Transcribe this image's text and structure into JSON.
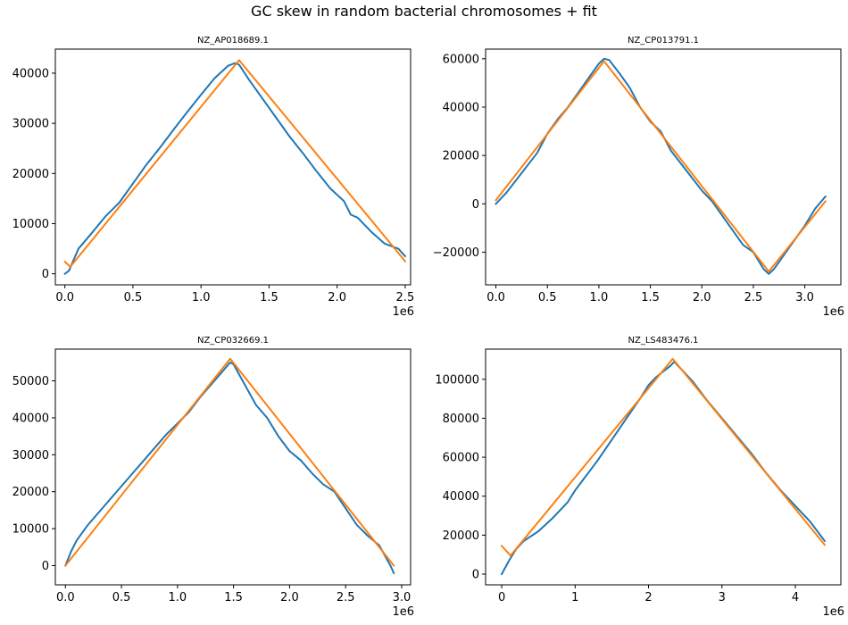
{
  "figure": {
    "suptitle": "GC skew in random bacterial chromosomes + fit"
  },
  "colors": {
    "data_line": "#1f77b4",
    "fit_line": "#ff7f0e",
    "axes": "#000000"
  },
  "chart_data": [
    {
      "type": "line",
      "title": "NZ_AP018689.1",
      "x_multiplier_label": "1e6",
      "xlim": [
        -0.07,
        2.54
      ],
      "ylim": [
        -2200,
        44800
      ],
      "x_ticks": [
        0,
        0.5,
        1.0,
        1.5,
        2.0,
        2.5
      ],
      "x_tick_labels": [
        "0.0",
        "0.5",
        "1.0",
        "1.5",
        "2.0",
        "2.5"
      ],
      "y_ticks": [
        0,
        10000,
        20000,
        30000,
        40000
      ],
      "y_tick_labels": [
        "0",
        "10000",
        "20000",
        "30000",
        "40000"
      ],
      "series": [
        {
          "x": [
            0,
            0.03,
            0.1,
            0.2,
            0.3,
            0.4,
            0.5,
            0.6,
            0.7,
            0.8,
            0.9,
            1.0,
            1.1,
            1.2,
            1.25,
            1.28,
            1.35,
            1.45,
            1.55,
            1.65,
            1.75,
            1.85,
            1.95,
            2.05,
            2.1,
            2.15,
            2.25,
            2.35,
            2.45,
            2.5
          ],
          "y": [
            0,
            600,
            5000,
            8200,
            11500,
            14200,
            18000,
            21800,
            25200,
            28800,
            32300,
            35700,
            39000,
            41500,
            42000,
            41700,
            38800,
            35000,
            31200,
            27400,
            24000,
            20400,
            17000,
            14500,
            11800,
            11200,
            8400,
            6000,
            5000,
            3500
          ]
        },
        {
          "x": [
            0,
            0.04,
            1.28,
            2.5
          ],
          "y": [
            2400,
            1400,
            42600,
            2500
          ]
        }
      ]
    },
    {
      "type": "line",
      "title": "NZ_CP013791.1",
      "x_multiplier_label": "1e6",
      "xlim": [
        -0.1,
        3.35
      ],
      "ylim": [
        -33500,
        64000
      ],
      "x_ticks": [
        0,
        0.5,
        1.0,
        1.5,
        2.0,
        2.5,
        3.0
      ],
      "x_tick_labels": [
        "0.0",
        "0.5",
        "1.0",
        "1.5",
        "2.0",
        "2.5",
        "3.0"
      ],
      "y_ticks": [
        -20000,
        0,
        20000,
        40000,
        60000
      ],
      "y_tick_labels": [
        "−20000",
        "0",
        "20000",
        "40000",
        "60000"
      ],
      "series": [
        {
          "x": [
            0,
            0.1,
            0.2,
            0.3,
            0.4,
            0.5,
            0.6,
            0.7,
            0.8,
            0.9,
            1.0,
            1.05,
            1.1,
            1.2,
            1.3,
            1.4,
            1.5,
            1.6,
            1.7,
            1.8,
            1.9,
            2.0,
            2.1,
            2.2,
            2.3,
            2.4,
            2.5,
            2.6,
            2.65,
            2.7,
            2.8,
            2.9,
            3.0,
            3.1,
            3.2
          ],
          "y": [
            0,
            4500,
            10000,
            15500,
            21000,
            29000,
            35000,
            40000,
            46000,
            52000,
            58000,
            60000,
            59500,
            54000,
            48000,
            40000,
            34000,
            30000,
            22000,
            16500,
            11000,
            5500,
            1000,
            -5000,
            -11000,
            -17000,
            -20000,
            -27000,
            -29000,
            -27000,
            -21000,
            -15000,
            -9000,
            -2000,
            3000
          ]
        },
        {
          "x": [
            0,
            1.05,
            2.65,
            3.2
          ],
          "y": [
            1500,
            59000,
            -28000,
            1000
          ]
        }
      ]
    },
    {
      "type": "line",
      "title": "NZ_CP032669.1",
      "x_multiplier_label": "1e6",
      "xlim": [
        -0.09,
        3.08
      ],
      "ylim": [
        -5200,
        58600
      ],
      "x_ticks": [
        0,
        0.5,
        1.0,
        1.5,
        2.0,
        2.5,
        3.0
      ],
      "x_tick_labels": [
        "0.0",
        "0.5",
        "1.0",
        "1.5",
        "2.0",
        "2.5",
        "3.0"
      ],
      "y_ticks": [
        0,
        10000,
        20000,
        30000,
        40000,
        50000
      ],
      "y_tick_labels": [
        "0",
        "10000",
        "20000",
        "30000",
        "40000",
        "50000"
      ],
      "series": [
        {
          "x": [
            0,
            0.05,
            0.1,
            0.2,
            0.3,
            0.4,
            0.5,
            0.6,
            0.7,
            0.8,
            0.9,
            1.0,
            1.1,
            1.2,
            1.3,
            1.4,
            1.47,
            1.5,
            1.6,
            1.7,
            1.8,
            1.9,
            2.0,
            2.1,
            2.2,
            2.3,
            2.4,
            2.5,
            2.6,
            2.7,
            2.8,
            2.9,
            2.93
          ],
          "y": [
            0,
            3800,
            6800,
            11000,
            14500,
            18000,
            21500,
            25000,
            28500,
            32000,
            35500,
            38500,
            41500,
            45500,
            49000,
            52500,
            55000,
            54500,
            49000,
            43500,
            40000,
            35000,
            31000,
            28500,
            25000,
            22000,
            20000,
            15500,
            11000,
            8000,
            5500,
            0,
            -2000
          ]
        },
        {
          "x": [
            0,
            1.47,
            2.93
          ],
          "y": [
            0,
            56000,
            0
          ]
        }
      ]
    },
    {
      "type": "line",
      "title": "NZ_LS483476.1",
      "x_multiplier_label": "1e6",
      "xlim": [
        -0.22,
        4.62
      ],
      "ylim": [
        -5500,
        115500
      ],
      "x_ticks": [
        0,
        1,
        2,
        3,
        4
      ],
      "x_tick_labels": [
        "0",
        "1",
        "2",
        "3",
        "4"
      ],
      "y_ticks": [
        0,
        20000,
        40000,
        60000,
        80000,
        100000
      ],
      "y_tick_labels": [
        "0",
        "20000",
        "40000",
        "60000",
        "80000",
        "100000"
      ],
      "series": [
        {
          "x": [
            0,
            0.1,
            0.2,
            0.3,
            0.5,
            0.7,
            0.9,
            1.0,
            1.1,
            1.3,
            1.5,
            1.7,
            1.9,
            2.0,
            2.1,
            2.3,
            2.35,
            2.4,
            2.6,
            2.8,
            3.0,
            3.2,
            3.4,
            3.6,
            3.8,
            4.0,
            4.2,
            4.4
          ],
          "y": [
            0,
            7000,
            13000,
            17000,
            22000,
            29000,
            37000,
            43000,
            48000,
            58000,
            69000,
            80000,
            91000,
            97000,
            101000,
            107000,
            109000,
            107000,
            99000,
            89000,
            80000,
            71000,
            62000,
            52000,
            43000,
            35000,
            27000,
            17000
          ]
        },
        {
          "x": [
            0,
            0.12,
            2.33,
            4.4
          ],
          "y": [
            14500,
            9500,
            110500,
            15000
          ]
        }
      ]
    }
  ]
}
